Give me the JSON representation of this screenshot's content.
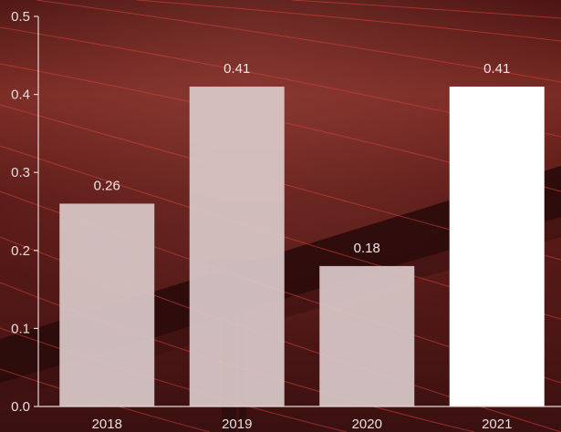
{
  "chart_data": {
    "type": "bar",
    "categories": [
      "2018",
      "2019",
      "2020",
      "2021"
    ],
    "values": [
      0.26,
      0.41,
      0.18,
      0.41
    ],
    "data_labels": [
      "0.26",
      "0.41",
      "0.18",
      "0.41"
    ],
    "ylim": [
      0,
      0.5
    ],
    "yticks": [
      "0.0",
      "0.1",
      "0.2",
      "0.3",
      "0.4",
      "0.5"
    ],
    "grid": false,
    "highlight_index": 3,
    "colors": {
      "bar": "#d9c8c8",
      "bar_highlight": "#ffffff",
      "axis": "#e6d6d6",
      "background_dark": "#2a0c0c",
      "background_mid": "#6e1f1c",
      "background_light": "#8a3a33",
      "accent_lines": "#e0443a"
    }
  }
}
